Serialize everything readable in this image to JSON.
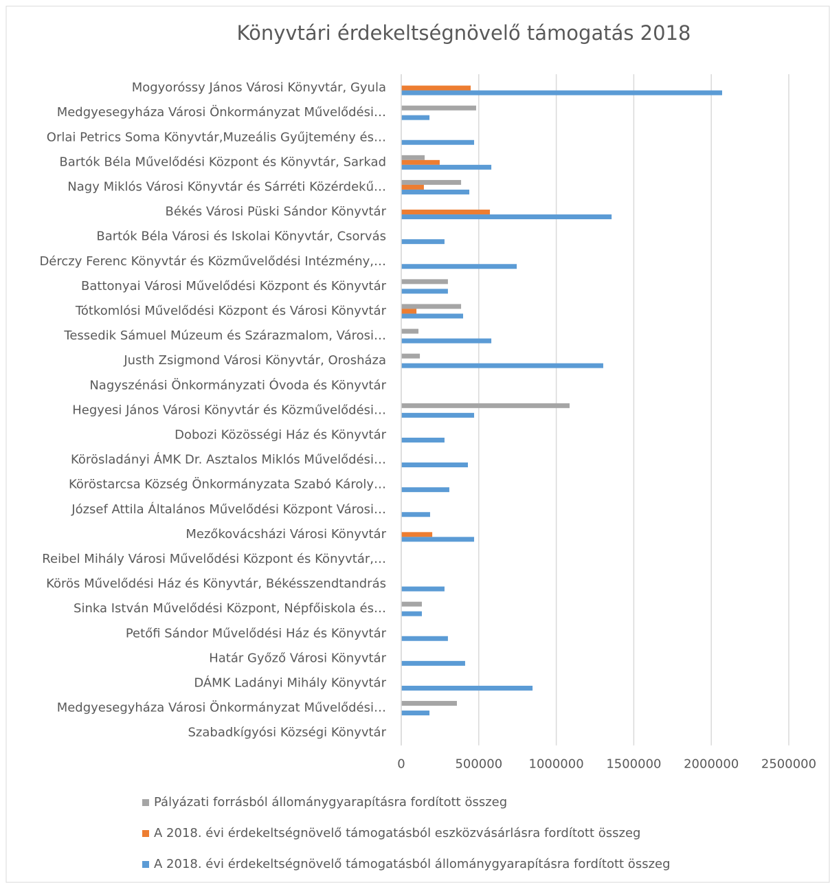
{
  "chart_data": {
    "type": "bar",
    "orientation": "horizontal",
    "title": "Könyvtári érdekeltségnövelő támogatás 2018",
    "categories": [
      "Mogyoróssy János Városi Könyvtár, Gyula",
      "Medgyesegyháza Városi Önkormányzat Művelődési…",
      "Orlai Petrics Soma Könyvtár,Muzeális Gyűjtemény és…",
      "Bartók Béla Művelődési Központ és Könyvtár, Sarkad",
      "Nagy Miklós Városi Könyvtár és Sárréti Közérdekű…",
      "Békés Városi Püski Sándor Könyvtár",
      "Bartók Béla Városi és Iskolai Könyvtár, Csorvás",
      "Dérczy Ferenc Könyvtár és Közművelődési Intézmény,…",
      "Battonyai Városi Művelődési Központ és Könyvtár",
      "Tótkomlósi Művelődési Központ és Városi Könyvtár",
      "Tessedik Sámuel Múzeum és Szárazmalom, Városi…",
      "Justh Zsigmond Városi Könyvtár, Orosháza",
      "Nagyszénási Önkormányzati Óvoda és Könyvtár",
      "Hegyesi János Városi Könyvtár és Közművelődési…",
      "Dobozi Közösségi Ház és Könyvtár",
      "Körösladányi ÁMK Dr. Asztalos Miklós Művelődési…",
      "Köröstarcsa Község Önkormányzata Szabó Károly…",
      "József Attila Általános Művelődési Központ Városi…",
      "Mezőkovácsházi Városi Könyvtár",
      "Reibel Mihály Városi Művelődési Központ és Könyvtár,…",
      "Körös Művelődési Ház és Könyvtár, Békésszendtandrás",
      "Sinka István Művelődési Központ, Népfőiskola és…",
      "Petőfi Sándor Művelődési Ház és Könyvtár",
      "Határ Győző Városi Könyvtár",
      "DÁMK Ladányi Mihály Könyvtár",
      "Medgyesegyháza Városi Önkormányzat Művelődési…",
      "Szabadkígyósi Községi Könyvtár"
    ],
    "series": [
      {
        "name": "Pályázati forrásból állománygyarapításra fordított összeg",
        "color": "#a5a5a5",
        "values": [
          0,
          483000,
          0,
          151000,
          386000,
          0,
          0,
          0,
          301000,
          386000,
          111000,
          120000,
          0,
          1086000,
          0,
          0,
          0,
          0,
          0,
          0,
          0,
          133000,
          0,
          0,
          0,
          359000,
          0
        ]
      },
      {
        "name": "A 2018. évi érdekeltségnövelő támogatásból eszközvásárlásra fordított összeg",
        "color": "#ed7d31",
        "values": [
          448000,
          0,
          0,
          248000,
          146000,
          572000,
          0,
          0,
          0,
          98000,
          0,
          0,
          0,
          0,
          0,
          0,
          0,
          0,
          200000,
          0,
          0,
          0,
          0,
          0,
          0,
          0,
          0
        ]
      },
      {
        "name": "A 2018. évi érdekeltségnövelő támogatásból állománygyarapításra fordított összeg",
        "color": "#5b9bd5",
        "values": [
          2070000,
          182000,
          470000,
          581000,
          439000,
          1357000,
          279000,
          745000,
          301000,
          399000,
          581000,
          1303000,
          0,
          470000,
          279000,
          430000,
          310000,
          186000,
          470000,
          0,
          279000,
          133000,
          301000,
          412000,
          847000,
          182000,
          0
        ]
      }
    ],
    "xlim": [
      0,
      2500000
    ],
    "xticks": [
      0,
      500000,
      1000000,
      1500000,
      2000000,
      2500000
    ],
    "grid": true
  }
}
